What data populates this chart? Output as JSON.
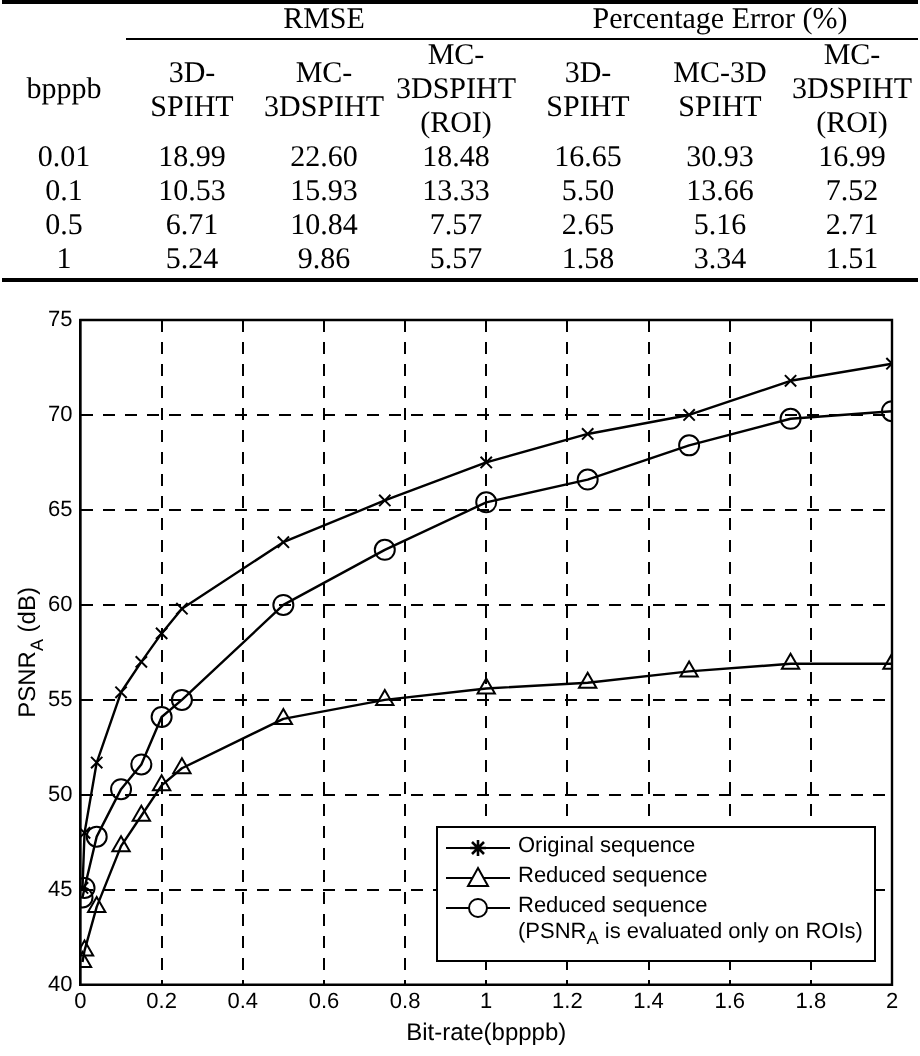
{
  "chart_data": [
    {
      "type": "other",
      "annotations": [
        "RMSE",
        "Percentage Error (%)",
        "bpppb",
        "3D-SPIHT",
        "MC-3DSPIHT",
        "MC-3DSPIHT (ROI)",
        "3D-SPIHT",
        "MC-3D SPIHT",
        "MC-3DSPIHT (ROI)",
        "0.01",
        "18.99",
        "22.60",
        "18.48",
        "16.65",
        "30.93",
        "16.99",
        "0.1",
        "10.53",
        "15.93",
        "13.33",
        "5.50",
        "13.66",
        "7.52",
        "0.5",
        "6.71",
        "10.84",
        "7.57",
        "2.65",
        "5.16",
        "2.71",
        "1",
        "5.24",
        "9.86",
        "5.57",
        "1.58",
        "3.34",
        "1.51"
      ]
    },
    {
      "type": "line",
      "xlabel": "Bit-rate(bpppb)",
      "ylabel": "PSNR$_{A}$ (dB)",
      "xlim": [
        0,
        2
      ],
      "xticks": [
        0,
        0.2,
        0.4,
        0.6,
        0.8,
        1,
        1.2,
        1.4,
        1.6,
        1.8,
        2
      ],
      "ylim": [
        40,
        75
      ],
      "yticks": [
        40,
        45,
        50,
        55,
        60,
        65,
        70,
        75
      ],
      "grid": true,
      "legend": "bottom right",
      "line_style": "solid",
      "series": [
        {
          "name": "Original sequence",
          "color": "#000000",
          "marker": "cross",
          "x": [
            0.005,
            0.01,
            0.04,
            0.1,
            0.15,
            0.2,
            0.25,
            0.5,
            0.75,
            1,
            1.25,
            1.5,
            1.75,
            2
          ],
          "values": [
            45.1,
            48.0,
            51.7,
            55.4,
            57.0,
            58.5,
            59.8,
            63.3,
            65.5,
            67.5,
            69.0,
            70.0,
            71.8,
            72.7
          ]
        },
        {
          "name": "Reduced sequence",
          "color": "#000000",
          "marker": "triangle",
          "x": [
            0.005,
            0.01,
            0.04,
            0.1,
            0.15,
            0.2,
            0.25,
            0.5,
            0.75,
            1,
            1.25,
            1.5,
            1.75,
            2
          ],
          "values": [
            41.2,
            41.8,
            44.1,
            47.3,
            48.9,
            50.5,
            51.4,
            54.0,
            55.0,
            55.6,
            55.9,
            56.5,
            56.9,
            56.9
          ]
        },
        {
          "name": "Reduced sequence\n(PSNR$_{A}$ is evaluated only on ROIs)",
          "color": "#000000",
          "marker": "circle",
          "x": [
            0.005,
            0.01,
            0.04,
            0.1,
            0.15,
            0.2,
            0.25,
            0.5,
            0.75,
            1,
            1.25,
            1.5,
            1.75,
            2
          ],
          "values": [
            44.6,
            45.1,
            47.8,
            50.3,
            51.6,
            54.1,
            55.0,
            60.0,
            62.9,
            65.4,
            66.6,
            68.4,
            69.8,
            70.2
          ]
        }
      ]
    }
  ]
}
